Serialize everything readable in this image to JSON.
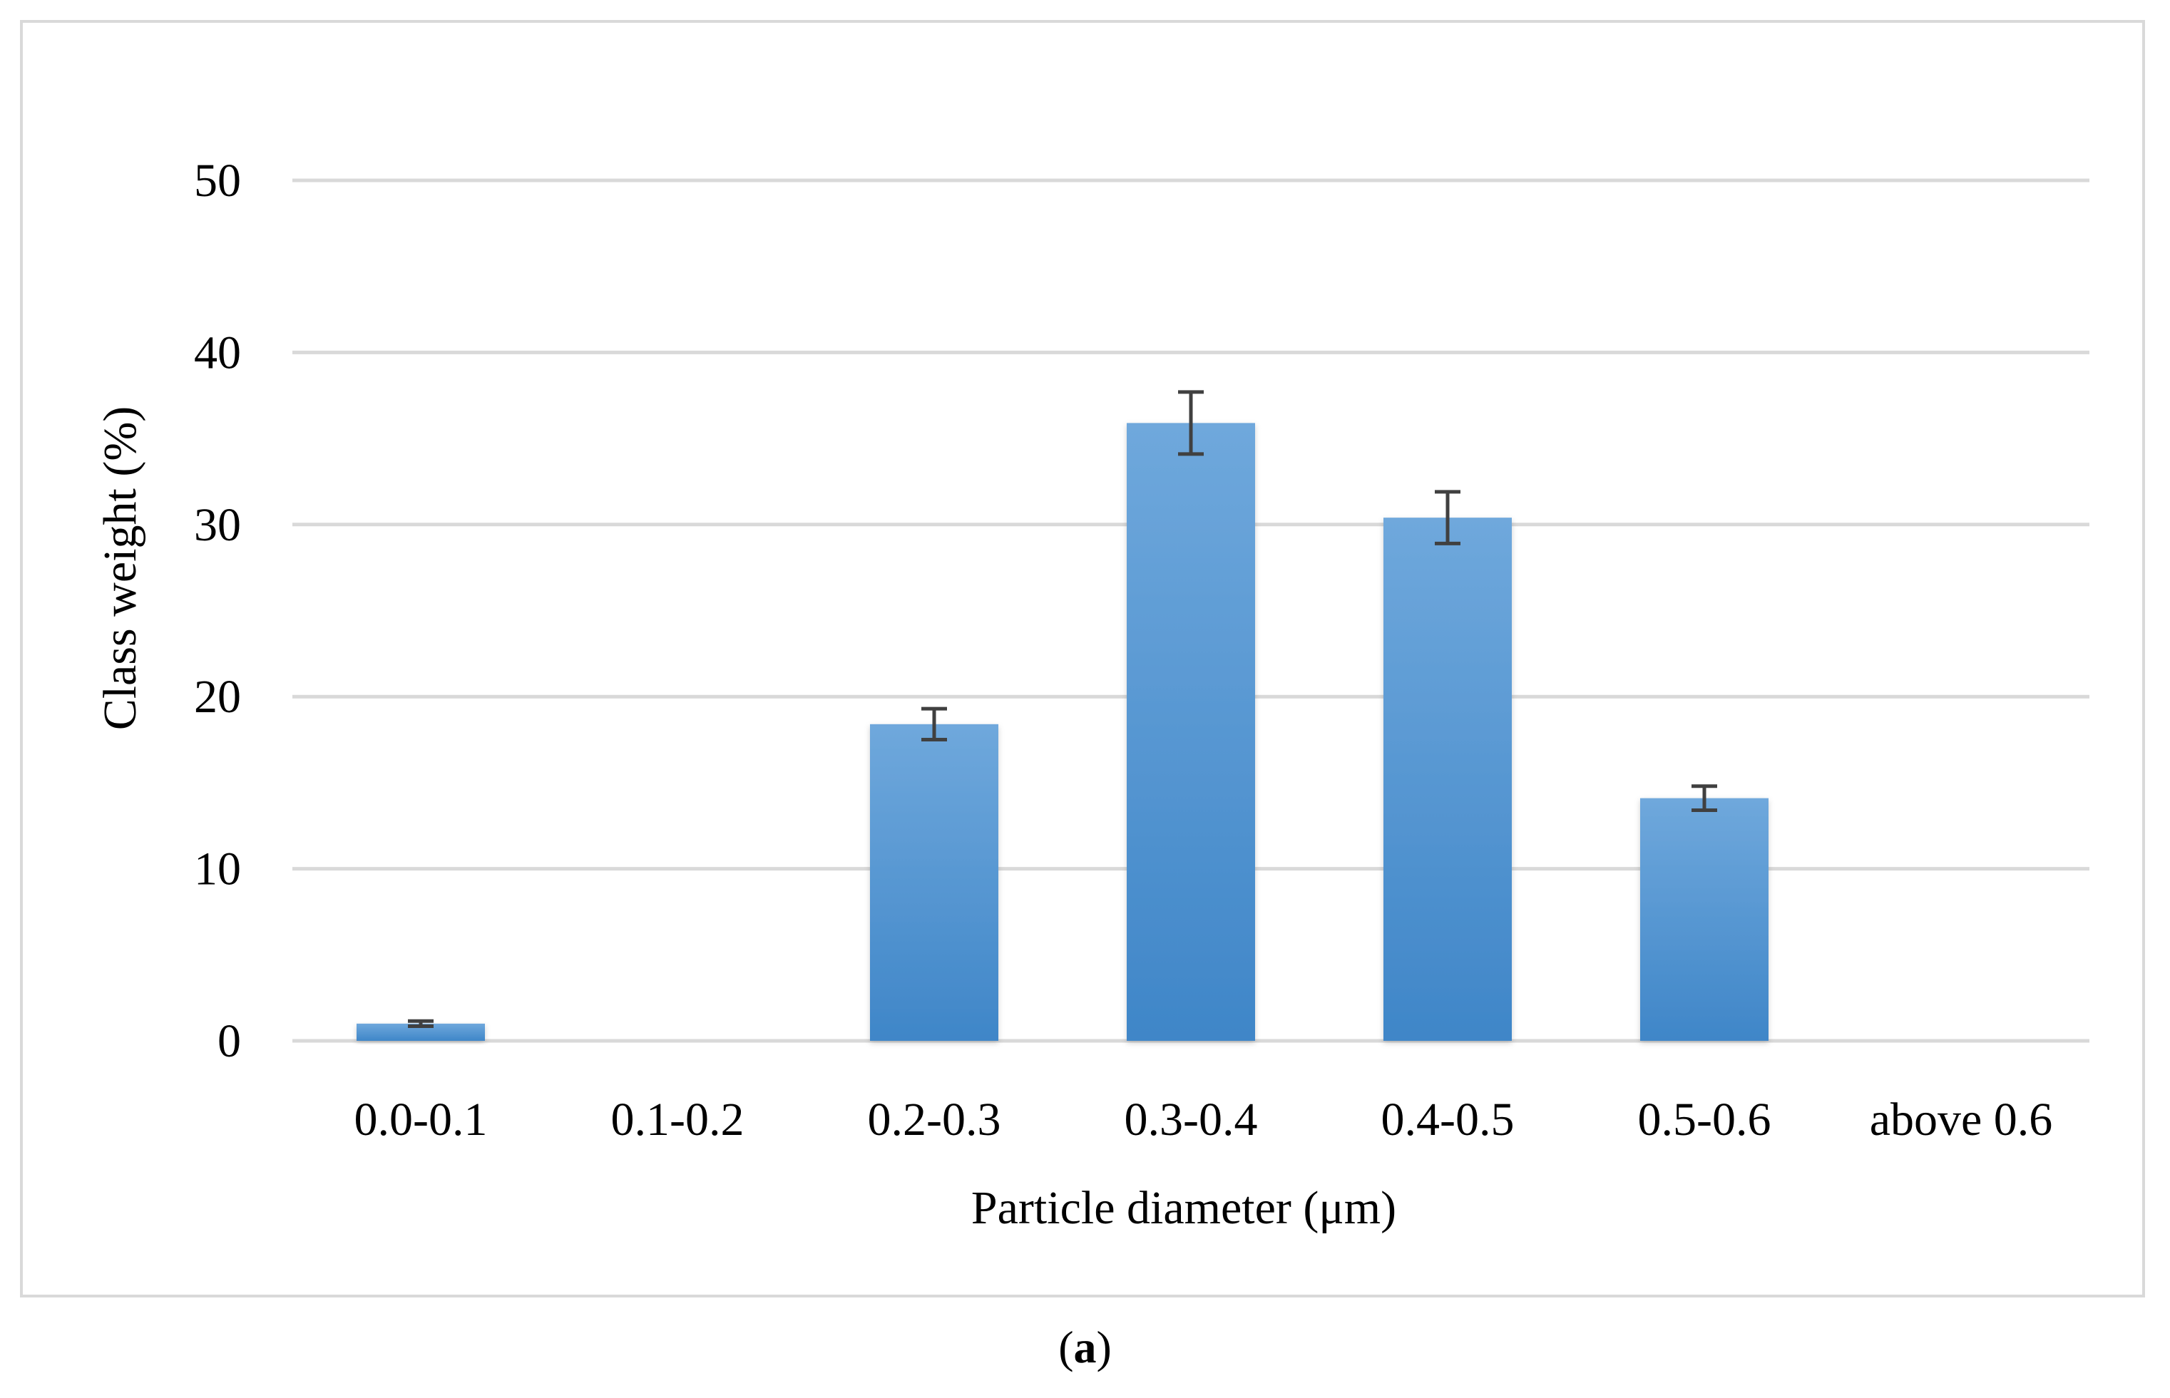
{
  "chart_data": {
    "type": "bar",
    "title": "",
    "xlabel": "Particle diameter (μm)",
    "ylabel": "Class weight (%)",
    "categories": [
      "0.0-0.1",
      "0.1-0.2",
      "0.2-0.3",
      "0.3-0.4",
      "0.4-0.5",
      "0.5-0.6",
      "above 0.6"
    ],
    "values": [
      1.0,
      0,
      18.4,
      35.9,
      30.4,
      14.1,
      0
    ],
    "error": [
      0.15,
      0,
      0.9,
      1.8,
      1.5,
      0.7,
      0
    ],
    "yticks": [
      "0",
      "10",
      "20",
      "30",
      "40",
      "50"
    ],
    "ylim": [
      0,
      50
    ],
    "grid": true,
    "legend": "none",
    "colors": {
      "bar_top": "#6fa8dc",
      "bar_bottom": "#3f86c8",
      "error_bar": "#404040",
      "grid": "#d9d9d9"
    }
  },
  "panel_label": {
    "open": "(",
    "letter": "a",
    "close": ")"
  }
}
